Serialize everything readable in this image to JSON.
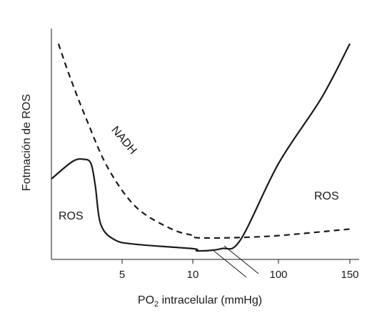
{
  "chart_data": {
    "type": "line",
    "title": "",
    "xlabel": {
      "main": "PO",
      "subscript": "2",
      "rest": " intracelular (mmHg)"
    },
    "ylabel": "Fotmación de ROS",
    "x_scale": "broken: linear 0–10, then compressed to 100, then linear to 150",
    "x_ticks": [
      "5",
      "10",
      "100",
      "150"
    ],
    "axis_break_on_x": true,
    "grid": false,
    "legend": "none",
    "y_units": "relative (no tick labels)",
    "series": [
      {
        "name": "NADH",
        "style": "dashed",
        "color": "#1a1a1a",
        "points": [
          {
            "x": 0.5,
            "y": 0.95
          },
          {
            "x": 1.3,
            "y": 0.8
          },
          {
            "x": 2.5,
            "y": 0.6
          },
          {
            "x": 4.0,
            "y": 0.38
          },
          {
            "x": 6.0,
            "y": 0.2
          },
          {
            "x": 8.5,
            "y": 0.1
          },
          {
            "x": 11.0,
            "y": 0.07
          },
          {
            "x": 15.0,
            "y": 0.06
          },
          {
            "x": 50.0,
            "y": 0.06
          },
          {
            "x": 100.0,
            "y": 0.07
          },
          {
            "x": 150.0,
            "y": 0.1
          }
        ]
      },
      {
        "name": "ROS",
        "style": "solid",
        "color": "#1a1a1a",
        "points": [
          {
            "x": 0.0,
            "y": 0.33
          },
          {
            "x": 1.5,
            "y": 0.41
          },
          {
            "x": 2.3,
            "y": 0.42
          },
          {
            "x": 2.8,
            "y": 0.4
          },
          {
            "x": 3.1,
            "y": 0.3
          },
          {
            "x": 3.5,
            "y": 0.12
          },
          {
            "x": 4.5,
            "y": 0.05
          },
          {
            "x": 6.0,
            "y": 0.03
          },
          {
            "x": 10.0,
            "y": 0.01
          },
          {
            "x": 15.0,
            "y": 0.0
          },
          {
            "x": 40.0,
            "y": 0.01
          },
          {
            "x": 60.0,
            "y": 0.05
          },
          {
            "x": 100.0,
            "y": 0.4
          },
          {
            "x": 130.0,
            "y": 0.7
          },
          {
            "x": 150.0,
            "y": 0.95
          }
        ]
      }
    ],
    "annotations": [
      {
        "text": "NADH",
        "near": "dashed curve, upper-left",
        "rotated": true
      },
      {
        "text": "ROS",
        "near": "low PO2 peak"
      },
      {
        "text": "ROS",
        "near": "high PO2 rise"
      }
    ]
  }
}
